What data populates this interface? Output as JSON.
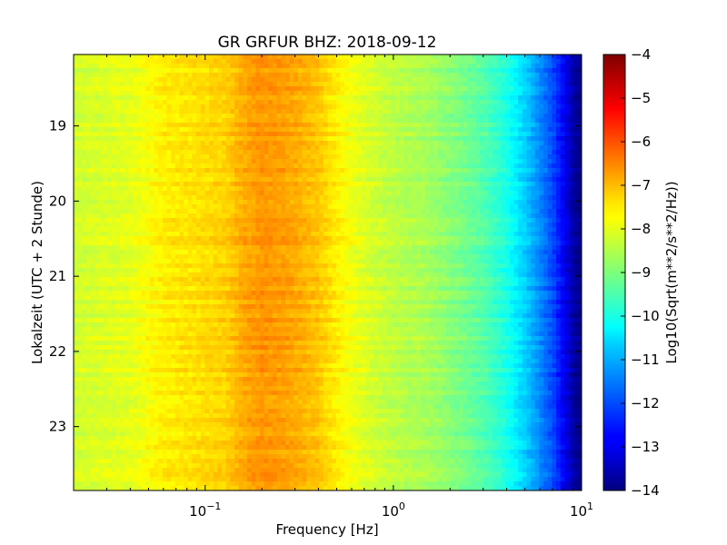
{
  "chart_data": {
    "type": "heatmap",
    "title": "GR GRFUR BHZ: 2018-09-12",
    "xlabel": "Frequency [Hz]",
    "ylabel": "Lokalzeit (UTC + 2 Stunde)",
    "x_scale": "log",
    "xlim": [
      0.02,
      10
    ],
    "x_ticks": [
      {
        "value": 0.1,
        "base": "10",
        "exp": "−1"
      },
      {
        "value": 1,
        "base": "10",
        "exp": "0"
      },
      {
        "value": 10,
        "base": "10",
        "exp": "1"
      }
    ],
    "ylim": [
      18.05,
      23.85
    ],
    "y_inverted": true,
    "y_ticks": [
      {
        "value": 19,
        "label": "19"
      },
      {
        "value": 20,
        "label": "20"
      },
      {
        "value": 21,
        "label": "21"
      },
      {
        "value": 22,
        "label": "22"
      },
      {
        "value": 23,
        "label": "23"
      }
    ],
    "colormap": "jet",
    "colorbar": {
      "label": "Log10(Sqrt(m**2/s**2/Hz))",
      "range": [
        -14,
        -4
      ],
      "ticks": [
        {
          "value": -4,
          "label": "−4"
        },
        {
          "value": -5,
          "label": "−5"
        },
        {
          "value": -6,
          "label": "−6"
        },
        {
          "value": -7,
          "label": "−7"
        },
        {
          "value": -8,
          "label": "−8"
        },
        {
          "value": -9,
          "label": "−9"
        },
        {
          "value": -10,
          "label": "−10"
        },
        {
          "value": -11,
          "label": "−11"
        },
        {
          "value": -12,
          "label": "−12"
        },
        {
          "value": -13,
          "label": "−13"
        },
        {
          "value": -14,
          "label": "−14"
        }
      ]
    },
    "spectrum_profile": {
      "frequency_hz": [
        0.02,
        0.04,
        0.06,
        0.08,
        0.1,
        0.13,
        0.16,
        0.2,
        0.25,
        0.3,
        0.4,
        0.5,
        0.6,
        0.8,
        1.0,
        1.5,
        2.0,
        3.0,
        4.0,
        5.0,
        6.0,
        7.0,
        8.0,
        9.0,
        10.0
      ],
      "log10_amplitude": [
        -8.2,
        -8.0,
        -7.6,
        -7.5,
        -7.4,
        -7.3,
        -6.9,
        -6.7,
        -6.8,
        -6.9,
        -7.2,
        -7.6,
        -7.9,
        -8.2,
        -8.4,
        -8.6,
        -8.9,
        -9.4,
        -10.0,
        -10.7,
        -11.4,
        -12.0,
        -12.8,
        -13.6,
        -14.0
      ]
    },
    "grid": false,
    "legend": "none"
  }
}
